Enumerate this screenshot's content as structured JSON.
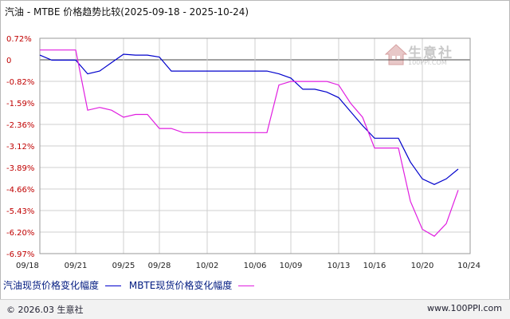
{
  "title": "汽油 - MTBE 价格趋势比较(2025-09-18 - 2025-10-24)",
  "watermark": {
    "text": "生意社",
    "url": "100PPI.COM"
  },
  "footer": {
    "copyright": "© 2026.03 生意社",
    "site": "www.100PPI.com"
  },
  "colors": {
    "series1": "#0000cc",
    "series2": "#e01ee0",
    "grid": "#cfcfcf",
    "zero": "#444444"
  },
  "chart_data": {
    "type": "line",
    "title": "汽油 - MTBE 价格趋势比较(2025-09-18 - 2025-10-24)",
    "xlabel": "",
    "ylabel": "",
    "x_start": "09/18",
    "x_end": "10/24",
    "x_ticks": [
      "09/18",
      "09/21",
      "09/25",
      "09/28",
      "10/02",
      "10/06",
      "10/09",
      "10/13",
      "10/16",
      "10/20",
      "10/24"
    ],
    "y_ticks": [
      "0.72%",
      "0",
      "-0.82%",
      "-1.59%",
      "-2.36%",
      "-3.12%",
      "-3.89%",
      "-4.66%",
      "-5.43%",
      "-6.20%",
      "-6.97%"
    ],
    "ylim": [
      -6.97,
      0.72
    ],
    "grid": true,
    "legend_position": "bottom",
    "series": [
      {
        "name": "汽油现货价格变化幅度",
        "points": [
          [
            "09/18",
            0.12
          ],
          [
            "09/19",
            -0.06
          ],
          [
            "09/20",
            -0.06
          ],
          [
            "09/21",
            -0.06
          ],
          [
            "09/22",
            -0.55
          ],
          [
            "09/23",
            -0.45
          ],
          [
            "09/24",
            -0.15
          ],
          [
            "09/25",
            0.15
          ],
          [
            "09/26",
            0.12
          ],
          [
            "09/27",
            0.12
          ],
          [
            "09/28",
            0.05
          ],
          [
            "09/29",
            -0.45
          ],
          [
            "09/30",
            -0.45
          ],
          [
            "10/01",
            -0.45
          ],
          [
            "10/02",
            -0.45
          ],
          [
            "10/03",
            -0.45
          ],
          [
            "10/04",
            -0.45
          ],
          [
            "10/05",
            -0.45
          ],
          [
            "10/06",
            -0.45
          ],
          [
            "10/07",
            -0.45
          ],
          [
            "10/08",
            -0.55
          ],
          [
            "10/09",
            -0.7
          ],
          [
            "10/10",
            -1.1
          ],
          [
            "10/11",
            -1.1
          ],
          [
            "10/12",
            -1.2
          ],
          [
            "10/13",
            -1.4
          ],
          [
            "10/14",
            -1.9
          ],
          [
            "10/15",
            -2.4
          ],
          [
            "10/16",
            -2.85
          ],
          [
            "10/17",
            -2.85
          ],
          [
            "10/18",
            -2.85
          ],
          [
            "10/19",
            -3.7
          ],
          [
            "10/20",
            -4.3
          ],
          [
            "10/21",
            -4.5
          ],
          [
            "10/22",
            -4.3
          ],
          [
            "10/23",
            -3.95
          ]
        ]
      },
      {
        "name": "MBTE现货价格变化幅度",
        "points": [
          [
            "09/18",
            0.3
          ],
          [
            "09/19",
            0.3
          ],
          [
            "09/20",
            0.3
          ],
          [
            "09/21",
            0.3
          ],
          [
            "09/22",
            -1.85
          ],
          [
            "09/23",
            -1.75
          ],
          [
            "09/24",
            -1.85
          ],
          [
            "09/25",
            -2.1
          ],
          [
            "09/26",
            -2.0
          ],
          [
            "09/27",
            -2.0
          ],
          [
            "09/28",
            -2.5
          ],
          [
            "09/29",
            -2.5
          ],
          [
            "09/30",
            -2.65
          ],
          [
            "10/01",
            -2.65
          ],
          [
            "10/02",
            -2.65
          ],
          [
            "10/03",
            -2.65
          ],
          [
            "10/04",
            -2.65
          ],
          [
            "10/05",
            -2.65
          ],
          [
            "10/06",
            -2.65
          ],
          [
            "10/07",
            -2.65
          ],
          [
            "10/08",
            -0.95
          ],
          [
            "10/09",
            -0.82
          ],
          [
            "10/10",
            -0.82
          ],
          [
            "10/11",
            -0.82
          ],
          [
            "10/12",
            -0.82
          ],
          [
            "10/13",
            -0.95
          ],
          [
            "10/14",
            -1.6
          ],
          [
            "10/15",
            -2.1
          ],
          [
            "10/16",
            -3.2
          ],
          [
            "10/17",
            -3.2
          ],
          [
            "10/18",
            -3.2
          ],
          [
            "10/19",
            -5.1
          ],
          [
            "10/20",
            -6.1
          ],
          [
            "10/21",
            -6.35
          ],
          [
            "10/22",
            -5.9
          ],
          [
            "10/23",
            -4.7
          ]
        ]
      }
    ]
  }
}
